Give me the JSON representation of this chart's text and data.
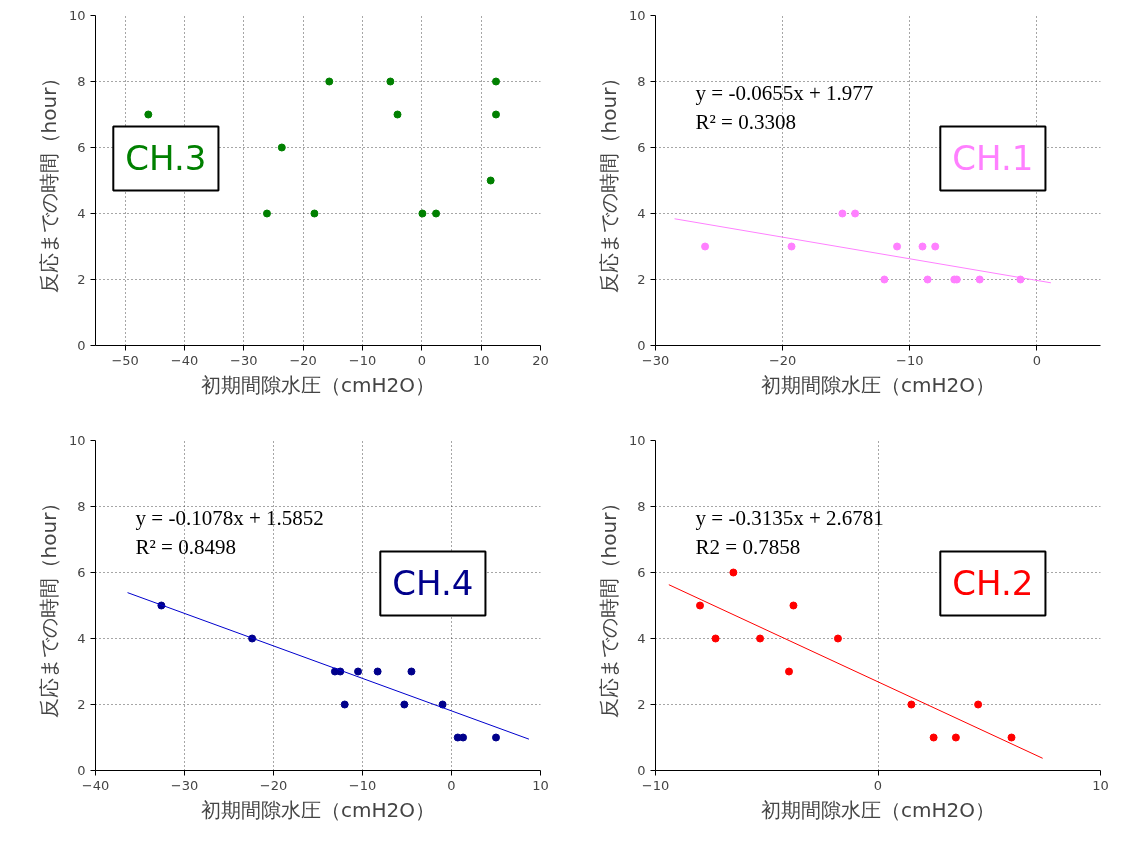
{
  "chart_data": [
    {
      "type": "scatter",
      "xlabel": "初期間隙水圧（cmH2O）",
      "ylabel": "反応までの時間（hour）",
      "xlim": [
        -55,
        20
      ],
      "xticks": [
        -50,
        -40,
        -30,
        -20,
        -10,
        0,
        10,
        20
      ],
      "ylim": [
        0,
        10
      ],
      "yticks": [
        0,
        2,
        4,
        6,
        8,
        10
      ],
      "grid": true,
      "marker": "circle",
      "annotations": [
        "CH.3"
      ],
      "series": [
        {
          "color": "#008000",
          "x": [
            -46.1,
            -23.6,
            -26.1,
            -18.1,
            -15.6,
            -5.3,
            -4.1,
            0.1,
            2.4,
            11.6,
            12.5,
            12.5
          ],
          "values": [
            7,
            6,
            4,
            4,
            8,
            8,
            7,
            4,
            4,
            5,
            8,
            7
          ]
        }
      ]
    },
    {
      "type": "scatter",
      "xlabel": "初期間隙水圧（cmH2O）",
      "ylabel": "反応までの時間（hour）",
      "xlim": [
        -30,
        5
      ],
      "xticks": [
        -30,
        -20,
        -10,
        0
      ],
      "ylim": [
        0,
        10
      ],
      "yticks": [
        0,
        2,
        4,
        6,
        8,
        10
      ],
      "grid": true,
      "marker": "circle",
      "annotations": [
        "y = -0.0655x + 1.977",
        "R² = 0.3308",
        "CH.1"
      ],
      "series": [
        {
          "color": "#ff80ff",
          "x": [
            -26.1,
            -19.3,
            -15.3,
            -14.3,
            -12.0,
            -11.0,
            -9.0,
            -8.6,
            -8.0,
            -6.5,
            -6.3,
            -4.5,
            -1.3
          ],
          "values": [
            3,
            3,
            4,
            4,
            2,
            3,
            3,
            2,
            3,
            2,
            2,
            2,
            2
          ]
        },
        {
          "type": "line",
          "marker": "none",
          "color": "#ff80ff",
          "x": [
            -28.5,
            1.1
          ],
          "values": [
            3.84,
            1.9
          ]
        }
      ]
    },
    {
      "type": "scatter",
      "xlabel": "初期間隙水圧（cmH2O）",
      "ylabel": "反応までの時間（hour）",
      "xlim": [
        -40,
        10
      ],
      "xticks": [
        -40,
        -30,
        -20,
        -10,
        0,
        10
      ],
      "ylim": [
        0,
        10
      ],
      "yticks": [
        0,
        2,
        4,
        6,
        8,
        10
      ],
      "grid": true,
      "marker": "circle",
      "annotations": [
        "y = -0.1078x + 1.5852",
        "R² = 0.8498",
        "CH.4"
      ],
      "series": [
        {
          "color": "#00008b",
          "x": [
            -32.6,
            -22.4,
            -13.1,
            -12.5,
            -12.0,
            -10.5,
            -8.3,
            -5.3,
            -4.5,
            -1.0,
            0.7,
            1.3,
            5.0
          ],
          "values": [
            5,
            4,
            3,
            3,
            2,
            3,
            3,
            2,
            3,
            2,
            1,
            1,
            1
          ]
        },
        {
          "type": "line",
          "marker": "none",
          "color": "#0000cd",
          "x": [
            -36.4,
            8.7
          ],
          "values": [
            5.39,
            0.95
          ]
        }
      ]
    },
    {
      "type": "scatter",
      "xlabel": "初期間隙水圧（cmH2O）",
      "ylabel": "反応までの時間（hour）",
      "xlim": [
        -10,
        10
      ],
      "xticks": [
        -10,
        0,
        10
      ],
      "ylim": [
        0,
        10
      ],
      "yticks": [
        0,
        2,
        4,
        6,
        8,
        10
      ],
      "grid": true,
      "marker": "circle",
      "annotations": [
        "y = -0.3135x + 2.6781",
        "R2 = 0.7858",
        "CH.2"
      ],
      "series": [
        {
          "color": "#ff0000",
          "x": [
            -8.0,
            -7.3,
            -6.5,
            -5.3,
            -4.0,
            -3.8,
            -1.8,
            1.5,
            2.5,
            3.5,
            4.5,
            6.0
          ],
          "values": [
            5,
            4,
            6,
            4,
            3,
            5,
            4,
            2,
            1,
            1,
            2,
            1
          ]
        },
        {
          "type": "line",
          "marker": "none",
          "color": "#ff0000",
          "x": [
            -9.4,
            7.4
          ],
          "values": [
            5.63,
            0.37
          ]
        }
      ]
    }
  ]
}
